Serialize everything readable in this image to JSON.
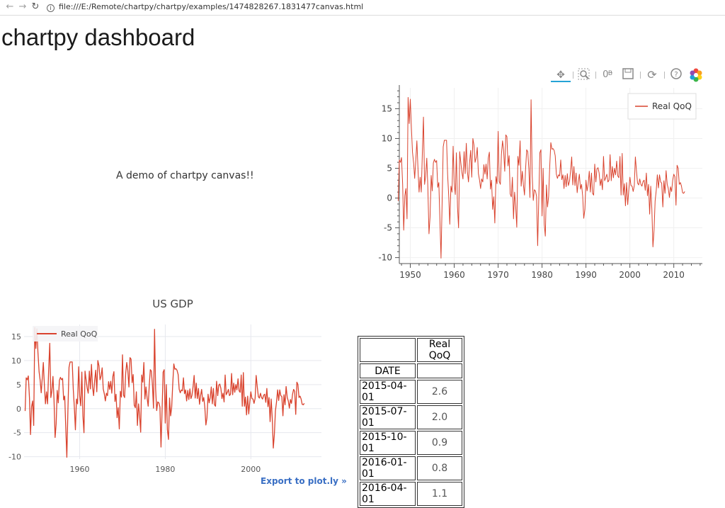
{
  "browser": {
    "url": "file:///E:/Remote/chartpy/chartpy/examples/1474828267.1831477canvas.html",
    "back_icon": "arrow-left-icon",
    "forward_icon": "arrow-right-icon",
    "reload_icon": "reload-icon",
    "info_icon": "info-icon"
  },
  "page": {
    "title": "chartpy dashboard",
    "demo_text": "A demo of chartpy canvas!!",
    "export_label": "Export to plot.ly »"
  },
  "toolbar": {
    "tools": [
      "pan-icon",
      "box-zoom-icon",
      "wheel-zoom-icon",
      "save-icon",
      "reset-icon",
      "help-icon",
      "bokeh-logo-icon"
    ]
  },
  "colors": {
    "series": "#d9432e",
    "accent": "#26a3d6",
    "link": "#3a6fc4"
  },
  "table": {
    "column_header": "Real QoQ",
    "index_header": "DATE",
    "rows": [
      {
        "date": "2015-04-01",
        "value": "2.6"
      },
      {
        "date": "2015-07-01",
        "value": "2.0"
      },
      {
        "date": "2015-10-01",
        "value": "0.9"
      },
      {
        "date": "2016-01-01",
        "value": "0.8"
      },
      {
        "date": "2016-04-01",
        "value": "1.1"
      }
    ]
  },
  "chart_data": [
    {
      "type": "line",
      "title": "",
      "xlabel": "",
      "ylabel": "",
      "xlim": [
        1947.5,
        2016.5
      ],
      "ylim": [
        -11,
        18.5
      ],
      "x_ticks": [
        1950,
        1960,
        1970,
        1980,
        1990,
        2000,
        2010
      ],
      "y_ticks": [
        -10,
        -5,
        0,
        5,
        10,
        15
      ],
      "grid": true,
      "legend": "top-right",
      "series": [
        {
          "name": "Real QoQ"
        }
      ]
    },
    {
      "type": "line",
      "title": "US GDP",
      "xlabel": "",
      "ylabel": "",
      "xlim": [
        1947.0,
        2016.5
      ],
      "ylim": [
        -10.5,
        17.5
      ],
      "x_ticks": [
        1960,
        1980,
        2000
      ],
      "y_ticks": [
        -10,
        -5,
        0,
        5,
        10,
        15
      ],
      "grid": true,
      "legend": "top-left",
      "series": [
        {
          "name": "Real QoQ"
        }
      ]
    }
  ],
  "gdp_series": {
    "start_year": 1947.25,
    "step_years": 0.25,
    "values": [
      -0.5,
      6.4,
      6.0,
      6.8,
      2.3,
      -5.4,
      0.4,
      1.6,
      -3.5,
      16.9,
      12.5,
      16.6,
      11.7,
      7.7,
      5.9,
      3.3,
      6.4,
      9.6,
      4.8,
      1.0,
      3.5,
      1.0,
      7.9,
      13.6,
      2.3,
      3.7,
      6.7,
      1.8,
      -6.0,
      -3.2,
      3.8,
      1.2,
      5.9,
      6.5,
      6.0,
      6.3,
      1.8,
      2.6,
      -4.0,
      -10.1,
      -0.5,
      8.6,
      9.7,
      9.7,
      9.7,
      4.0,
      0.3,
      -4.4,
      2.0,
      1.0,
      8.7,
      2.6,
      0.6,
      7.6,
      -1.5,
      -5.0,
      7.8,
      6.0,
      4.3,
      3.2,
      7.8,
      4.1,
      9.2,
      4.5,
      2.7,
      5.9,
      8.0,
      3.5,
      10.0,
      8.9,
      6.0,
      6.8,
      8.5,
      4.1,
      3.1,
      1.6,
      3.2,
      2.7,
      5.6,
      4.0,
      5.7,
      3.2,
      6.7,
      7.7,
      1.5,
      3.0,
      -1.9,
      0.2,
      -4.2,
      3.6,
      2.4,
      11.2,
      2.8,
      2.3,
      7.3,
      9.6,
      8.0,
      4.5,
      10.6,
      10.3,
      5.4,
      7.1,
      0.7,
      0.2,
      3.5,
      -3.5,
      1.0,
      -1.5,
      -4.9,
      7.0,
      5.5,
      9.6,
      2.0,
      4.5,
      2.3,
      0.5,
      4.8,
      8.1,
      7.8,
      4.9,
      0.1,
      16.5,
      4.1,
      -0.4,
      1.4,
      1.2,
      0.3,
      -8.0,
      -0.5,
      7.6,
      8.1,
      -3.0,
      5.0,
      -4.4,
      -6.4,
      2.2,
      -1.5,
      0.3,
      5.2,
      9.3,
      8.2,
      8.3,
      8.0,
      7.1,
      4.0,
      3.3,
      3.9,
      3.7,
      6.4,
      3.1,
      3.9,
      1.6,
      3.8,
      1.9,
      4.1,
      2.1,
      2.8,
      4.6,
      6.9,
      2.2,
      5.3,
      2.1,
      4.2,
      0.9,
      2.7,
      4.0,
      1.5,
      2.3,
      0.3,
      -3.4,
      -1.9,
      3.0,
      1.2,
      2.3,
      4.5,
      1.0,
      4.2,
      0.8,
      0.5,
      5.7,
      2.7,
      4.9,
      5.1,
      4.2,
      2.1,
      3.2,
      1.4,
      7.0,
      2.9,
      3.4,
      4.0,
      2.7,
      3.0,
      7.3,
      2.9,
      5.3,
      3.4,
      5.0,
      3.9,
      6.2,
      3.7,
      3.4,
      7.0,
      0.5,
      7.5,
      0.5,
      2.4,
      -1.3,
      2.6,
      -1.1,
      1.4,
      3.5,
      2.1,
      2.0,
      1.1,
      2.1,
      6.9,
      4.5,
      2.5,
      2.2,
      3.2,
      2.3,
      2.0,
      2.8,
      3.0,
      1.3,
      4.2,
      0.4,
      2.3,
      -2.7,
      2.0,
      -1.9,
      -8.2,
      -5.4,
      -0.5,
      1.3,
      3.9,
      1.7,
      3.9,
      2.7,
      2.5,
      -1.5,
      2.9,
      0.8,
      4.6,
      2.3,
      1.6,
      0.1,
      1.9,
      1.1,
      3.0,
      4.0,
      3.6,
      -1.2,
      5.5,
      5.0,
      2.3,
      2.6,
      2.0,
      0.9,
      0.8,
      1.1
    ]
  }
}
